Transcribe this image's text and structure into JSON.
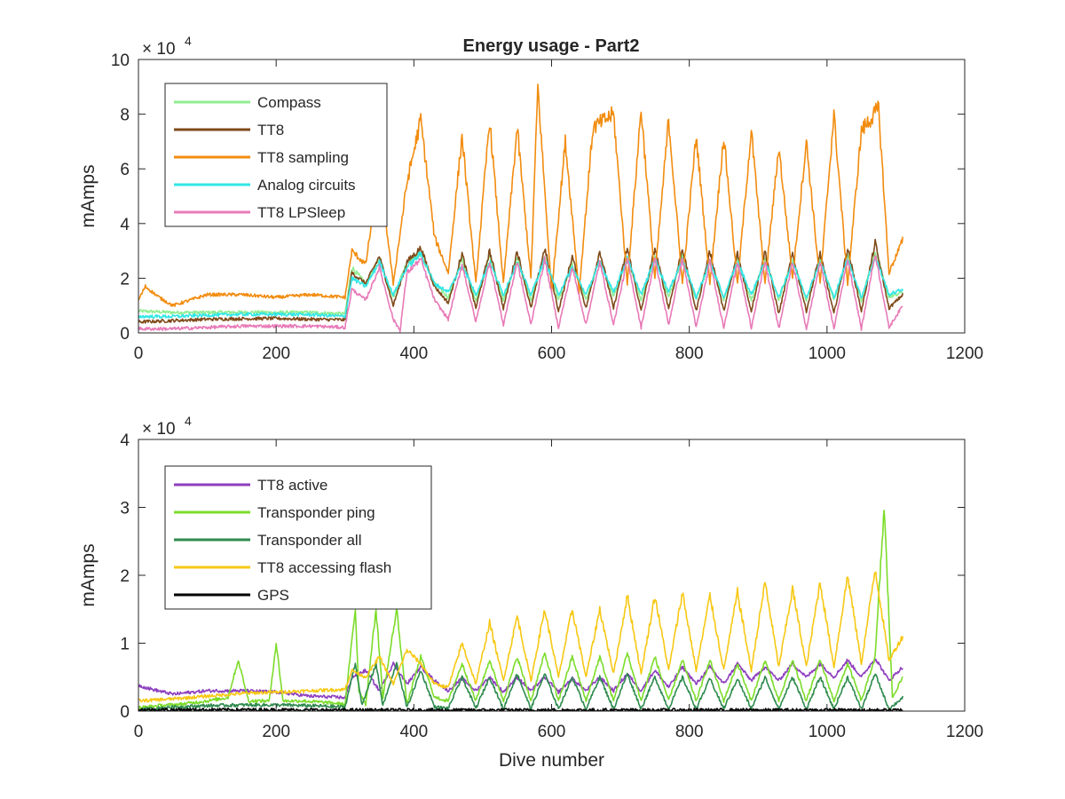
{
  "figure": {
    "title": "Energy usage - Part2"
  },
  "chart_data": [
    {
      "type": "line",
      "title": "Energy usage - Part2",
      "xlabel": "",
      "ylabel": "mAmps",
      "xlim": [
        0,
        1200
      ],
      "ylim": [
        0,
        100000
      ],
      "xticks": [
        0,
        200,
        400,
        600,
        800,
        1000,
        1200
      ],
      "xtick_labels": [
        "0",
        "200",
        "400",
        "600",
        "800",
        "1000",
        "1200"
      ],
      "yticks": [
        0,
        20000,
        40000,
        60000,
        80000,
        100000
      ],
      "ytick_labels": [
        "0",
        "2",
        "4",
        "6",
        "8",
        "10"
      ],
      "y_exponent_label": "× 10",
      "y_exponent_power": "4",
      "grid": false,
      "legend_position": "top-left",
      "x_range": [
        0,
        1110
      ],
      "series": [
        {
          "name": "Compass",
          "color": "#90ee90",
          "x": [
            0,
            50,
            100,
            150,
            200,
            250,
            300,
            310,
            330,
            350,
            370,
            390,
            410,
            430,
            450,
            470,
            490,
            510,
            530,
            550,
            570,
            590,
            610,
            630,
            650,
            670,
            690,
            710,
            730,
            750,
            770,
            790,
            810,
            830,
            850,
            870,
            890,
            910,
            930,
            950,
            970,
            990,
            1010,
            1030,
            1050,
            1070,
            1090,
            1110
          ],
          "values": [
            8000,
            7500,
            7500,
            7600,
            7500,
            7500,
            7000,
            24000,
            18000,
            27000,
            13000,
            26000,
            29000,
            18000,
            13000,
            27000,
            12000,
            28000,
            12000,
            27000,
            12000,
            28000,
            12000,
            25000,
            12000,
            27000,
            13000,
            28000,
            12000,
            28000,
            13000,
            28000,
            12000,
            27000,
            12000,
            27000,
            12000,
            27000,
            12000,
            27000,
            12000,
            27000,
            12000,
            28000,
            12000,
            30000,
            13000,
            15000
          ]
        },
        {
          "name": "TT8",
          "color": "#7f4a1a",
          "x": [
            0,
            50,
            100,
            150,
            200,
            250,
            300,
            310,
            330,
            350,
            370,
            390,
            410,
            430,
            450,
            470,
            490,
            510,
            530,
            550,
            570,
            590,
            610,
            630,
            650,
            670,
            690,
            710,
            730,
            750,
            770,
            790,
            810,
            830,
            850,
            870,
            890,
            910,
            930,
            950,
            970,
            990,
            1010,
            1030,
            1050,
            1070,
            1090,
            1110
          ],
          "values": [
            4000,
            4500,
            5000,
            5200,
            5300,
            5000,
            4800,
            22000,
            18000,
            28000,
            10000,
            26000,
            31000,
            17000,
            11000,
            29000,
            9000,
            30000,
            9000,
            30000,
            9000,
            31000,
            8000,
            28000,
            9000,
            30000,
            9000,
            31000,
            8000,
            31000,
            9000,
            31000,
            8000,
            30000,
            8000,
            29000,
            8000,
            30000,
            7000,
            29000,
            8000,
            29000,
            7000,
            31000,
            8000,
            33000,
            9000,
            14000
          ]
        },
        {
          "name": "TT8 sampling",
          "color": "#f28c0f",
          "x": [
            0,
            10,
            30,
            50,
            100,
            150,
            200,
            250,
            300,
            310,
            330,
            350,
            370,
            390,
            410,
            430,
            450,
            470,
            490,
            510,
            530,
            550,
            570,
            580,
            600,
            620,
            640,
            660,
            690,
            710,
            730,
            750,
            770,
            790,
            810,
            830,
            850,
            870,
            890,
            910,
            930,
            950,
            970,
            990,
            1010,
            1030,
            1050,
            1075,
            1090,
            1110
          ],
          "values": [
            12000,
            17000,
            13000,
            10000,
            14000,
            14000,
            13000,
            14000,
            13000,
            30000,
            25000,
            60000,
            18000,
            55000,
            78000,
            35000,
            22000,
            72000,
            18000,
            78000,
            18000,
            75000,
            20000,
            90000,
            15000,
            70000,
            15000,
            75000,
            80000,
            18000,
            82000,
            20000,
            78000,
            18000,
            72000,
            18000,
            72000,
            18000,
            74000,
            18000,
            68000,
            20000,
            70000,
            18000,
            80000,
            18000,
            74000,
            82000,
            22000,
            34000
          ]
        },
        {
          "name": "Analog circuits",
          "color": "#33e6e6",
          "x": [
            0,
            50,
            100,
            150,
            200,
            250,
            300,
            310,
            330,
            350,
            370,
            390,
            410,
            430,
            450,
            470,
            490,
            510,
            530,
            550,
            570,
            590,
            610,
            630,
            650,
            670,
            690,
            710,
            730,
            750,
            770,
            790,
            810,
            830,
            850,
            870,
            890,
            910,
            930,
            950,
            970,
            990,
            1010,
            1030,
            1050,
            1070,
            1090,
            1110
          ],
          "values": [
            6000,
            6000,
            6500,
            6800,
            6800,
            6700,
            6000,
            20000,
            17000,
            26000,
            14000,
            24000,
            29000,
            18000,
            15000,
            25000,
            14000,
            26000,
            14000,
            26000,
            14000,
            27000,
            14000,
            24000,
            14000,
            26000,
            15000,
            27000,
            14000,
            27000,
            15000,
            27000,
            13000,
            26000,
            13000,
            26000,
            14000,
            26000,
            13000,
            26000,
            13000,
            26000,
            13000,
            27000,
            13000,
            28000,
            14000,
            16000
          ]
        },
        {
          "name": "TT8 LPSleep",
          "color": "#e87ab8",
          "x": [
            0,
            50,
            100,
            150,
            200,
            250,
            300,
            310,
            330,
            350,
            370,
            380,
            390,
            410,
            430,
            450,
            470,
            490,
            510,
            530,
            550,
            570,
            590,
            610,
            630,
            650,
            670,
            690,
            710,
            730,
            750,
            770,
            790,
            810,
            830,
            850,
            870,
            890,
            910,
            930,
            950,
            970,
            990,
            1010,
            1030,
            1050,
            1070,
            1090,
            1110
          ],
          "values": [
            1500,
            1500,
            2000,
            2500,
            2500,
            2500,
            2000,
            16000,
            12000,
            24000,
            5000,
            1000,
            22000,
            27000,
            12000,
            5000,
            25000,
            4000,
            26000,
            3000,
            26000,
            3000,
            27000,
            2000,
            24000,
            3000,
            26000,
            3000,
            27000,
            2000,
            27000,
            3000,
            27000,
            2000,
            26000,
            2000,
            26000,
            2000,
            26000,
            1500,
            26000,
            1500,
            26000,
            1500,
            27000,
            1500,
            29000,
            2000,
            10000
          ]
        }
      ]
    },
    {
      "type": "line",
      "title": "",
      "xlabel": "Dive number",
      "ylabel": "mAmps",
      "xlim": [
        0,
        1200
      ],
      "ylim": [
        0,
        40000
      ],
      "xticks": [
        0,
        200,
        400,
        600,
        800,
        1000,
        1200
      ],
      "xtick_labels": [
        "0",
        "200",
        "400",
        "600",
        "800",
        "1000",
        "1200"
      ],
      "yticks": [
        0,
        10000,
        20000,
        30000,
        40000
      ],
      "ytick_labels": [
        "0",
        "1",
        "2",
        "3",
        "4"
      ],
      "y_exponent_label": "× 10",
      "y_exponent_power": "4",
      "grid": false,
      "legend_position": "top-left",
      "x_range": [
        0,
        1110
      ],
      "series": [
        {
          "name": "TT8 active",
          "color": "#8e3fbf",
          "x": [
            0,
            20,
            50,
            100,
            150,
            200,
            250,
            300,
            310,
            330,
            350,
            370,
            390,
            410,
            430,
            450,
            470,
            490,
            510,
            530,
            550,
            570,
            590,
            610,
            630,
            650,
            670,
            690,
            710,
            730,
            750,
            770,
            790,
            810,
            830,
            850,
            870,
            890,
            910,
            930,
            950,
            970,
            990,
            1010,
            1030,
            1050,
            1070,
            1090,
            1110
          ],
          "values": [
            3800,
            3200,
            2500,
            3000,
            3000,
            2800,
            2200,
            2000,
            5000,
            6000,
            3000,
            7000,
            4000,
            6500,
            4500,
            3000,
            4800,
            3000,
            5000,
            2800,
            5000,
            3000,
            5000,
            2800,
            4800,
            3000,
            5000,
            3000,
            5500,
            3000,
            6000,
            3500,
            6500,
            4000,
            6500,
            4000,
            7000,
            4500,
            6500,
            4500,
            7000,
            5000,
            7000,
            5000,
            7500,
            5000,
            7800,
            4500,
            6500
          ]
        },
        {
          "name": "Transponder ping",
          "color": "#7cdc2a",
          "x": [
            0,
            30,
            60,
            100,
            130,
            145,
            160,
            190,
            200,
            210,
            240,
            280,
            300,
            315,
            320,
            330,
            345,
            355,
            375,
            390,
            410,
            430,
            450,
            470,
            490,
            510,
            530,
            550,
            570,
            590,
            610,
            630,
            650,
            670,
            690,
            710,
            730,
            750,
            770,
            790,
            810,
            830,
            850,
            870,
            890,
            910,
            930,
            950,
            970,
            990,
            1010,
            1030,
            1050,
            1070,
            1083,
            1095,
            1110
          ],
          "values": [
            500,
            800,
            1000,
            1500,
            2000,
            7500,
            1500,
            1500,
            10000,
            1500,
            1500,
            1200,
            1000,
            15000,
            3000,
            1000,
            15000,
            2000,
            15000,
            1000,
            8000,
            2000,
            1500,
            7000,
            1500,
            7500,
            1500,
            8000,
            1500,
            8500,
            1500,
            8000,
            1500,
            8000,
            1500,
            8500,
            1500,
            8000,
            1500,
            7500,
            1500,
            7500,
            1500,
            7000,
            1500,
            7500,
            1500,
            7500,
            1500,
            7500,
            1500,
            7000,
            1500,
            8000,
            30000,
            2000,
            5000
          ]
        },
        {
          "name": "Transponder all",
          "color": "#2e8b4e",
          "x": [
            0,
            50,
            100,
            150,
            200,
            250,
            300,
            315,
            325,
            345,
            355,
            375,
            390,
            410,
            430,
            450,
            470,
            490,
            510,
            530,
            550,
            570,
            590,
            610,
            630,
            650,
            670,
            690,
            710,
            730,
            750,
            770,
            790,
            810,
            830,
            850,
            870,
            890,
            910,
            930,
            950,
            970,
            990,
            1010,
            1030,
            1050,
            1070,
            1090,
            1110
          ],
          "values": [
            200,
            600,
            800,
            900,
            900,
            800,
            600,
            7000,
            800,
            7000,
            800,
            7000,
            500,
            6000,
            600,
            400,
            5000,
            400,
            5000,
            300,
            5500,
            300,
            5500,
            300,
            5000,
            300,
            5000,
            300,
            5500,
            300,
            5000,
            300,
            5000,
            300,
            4800,
            300,
            4800,
            300,
            5000,
            300,
            5000,
            300,
            5000,
            300,
            5000,
            300,
            5500,
            300,
            2000
          ]
        },
        {
          "name": "TT8 accessing flash",
          "color": "#f7c814",
          "x": [
            0,
            50,
            100,
            150,
            200,
            250,
            300,
            310,
            330,
            350,
            370,
            390,
            410,
            430,
            450,
            470,
            490,
            510,
            530,
            550,
            570,
            590,
            610,
            630,
            650,
            670,
            690,
            710,
            730,
            750,
            770,
            790,
            810,
            830,
            850,
            870,
            890,
            910,
            930,
            950,
            970,
            990,
            1010,
            1030,
            1050,
            1070,
            1090,
            1110
          ],
          "values": [
            1500,
            1800,
            2200,
            2600,
            2800,
            3000,
            3200,
            6000,
            5000,
            8000,
            4000,
            9000,
            7000,
            4000,
            3500,
            10000,
            4000,
            13000,
            4500,
            14000,
            4500,
            15000,
            5000,
            15000,
            5000,
            15000,
            5500,
            17000,
            5500,
            17000,
            6000,
            17500,
            6000,
            17000,
            6000,
            17500,
            6000,
            19000,
            6500,
            18000,
            6500,
            19000,
            6500,
            20000,
            7000,
            21000,
            7500,
            11000
          ]
        },
        {
          "name": "GPS",
          "color": "#000000",
          "x": [
            0,
            100,
            200,
            300,
            400,
            500,
            600,
            700,
            800,
            900,
            1000,
            1110
          ],
          "values": [
            200,
            200,
            200,
            150,
            150,
            150,
            150,
            150,
            150,
            150,
            150,
            150
          ]
        }
      ]
    }
  ]
}
